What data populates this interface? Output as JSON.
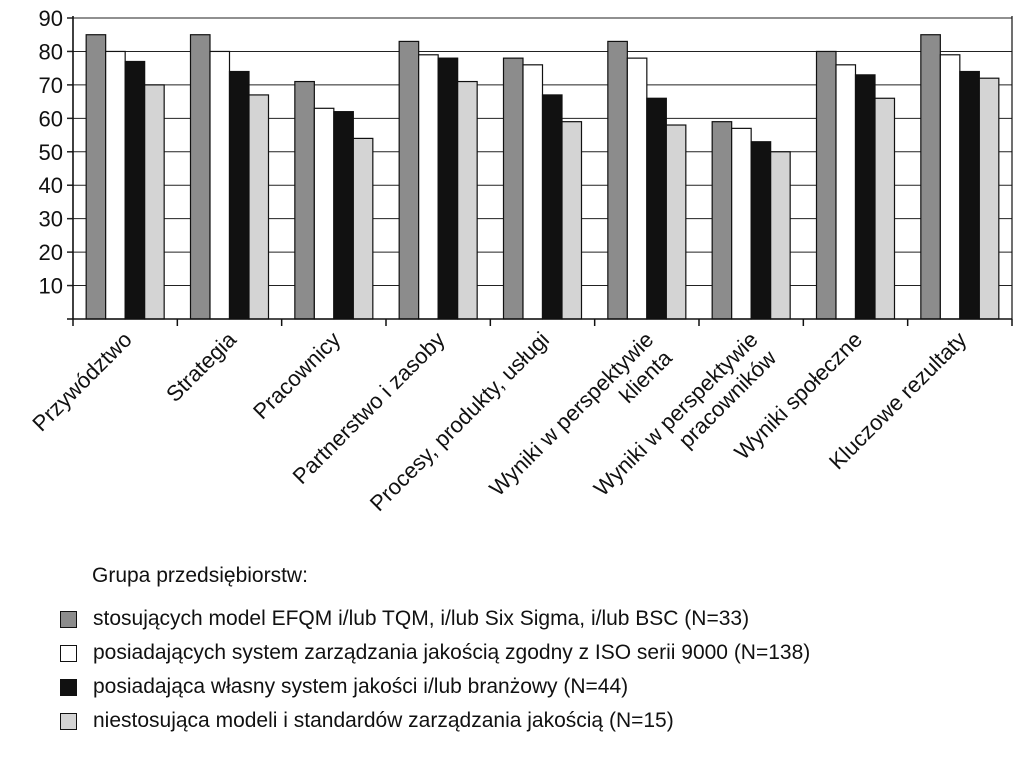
{
  "chart_data": {
    "type": "bar",
    "title": "",
    "xlabel": "",
    "ylabel": "",
    "ylim": [
      0,
      90
    ],
    "yticks": [
      10,
      20,
      30,
      40,
      50,
      60,
      70,
      80,
      90
    ],
    "grid": "horizontal",
    "legend_position": "bottom",
    "categories": [
      [
        "Przywództwo"
      ],
      [
        "Strategia"
      ],
      [
        "Pracownicy"
      ],
      [
        "Partnerstwo i zasoby"
      ],
      [
        "Procesy, produkty, usługi"
      ],
      [
        "Wyniki w perspektywie",
        "klienta"
      ],
      [
        "Wyniki w perspektywie",
        "pracowników"
      ],
      [
        "Wyniki społeczne"
      ],
      [
        "Kluczowe rezultaty"
      ]
    ],
    "series": [
      {
        "name": "stosujących model EFQM i/lub TQM, i/lub Six Sigma, i/lub BSC (N=33)",
        "color": "#8c8c8c",
        "values": [
          85,
          85,
          71,
          83,
          78,
          83,
          59,
          80,
          85
        ]
      },
      {
        "name": "posiadających system zarządzania jakością zgodny z ISO serii 9000 (N=138)",
        "color": "#ffffff",
        "values": [
          80,
          80,
          63,
          79,
          76,
          78,
          57,
          76,
          79
        ]
      },
      {
        "name": "posiadająca własny system jakości i/lub branżowy (N=44)",
        "color": "#111111",
        "values": [
          77,
          74,
          62,
          78,
          67,
          66,
          53,
          73,
          74
        ]
      },
      {
        "name": "niestosująca modeli i standardów zarządzania jakością (N=15)",
        "color": "#d4d4d4",
        "values": [
          70,
          67,
          54,
          71,
          59,
          58,
          50,
          66,
          72
        ]
      }
    ]
  },
  "legend": {
    "title": "Grupa przedsiębiorstw:"
  }
}
